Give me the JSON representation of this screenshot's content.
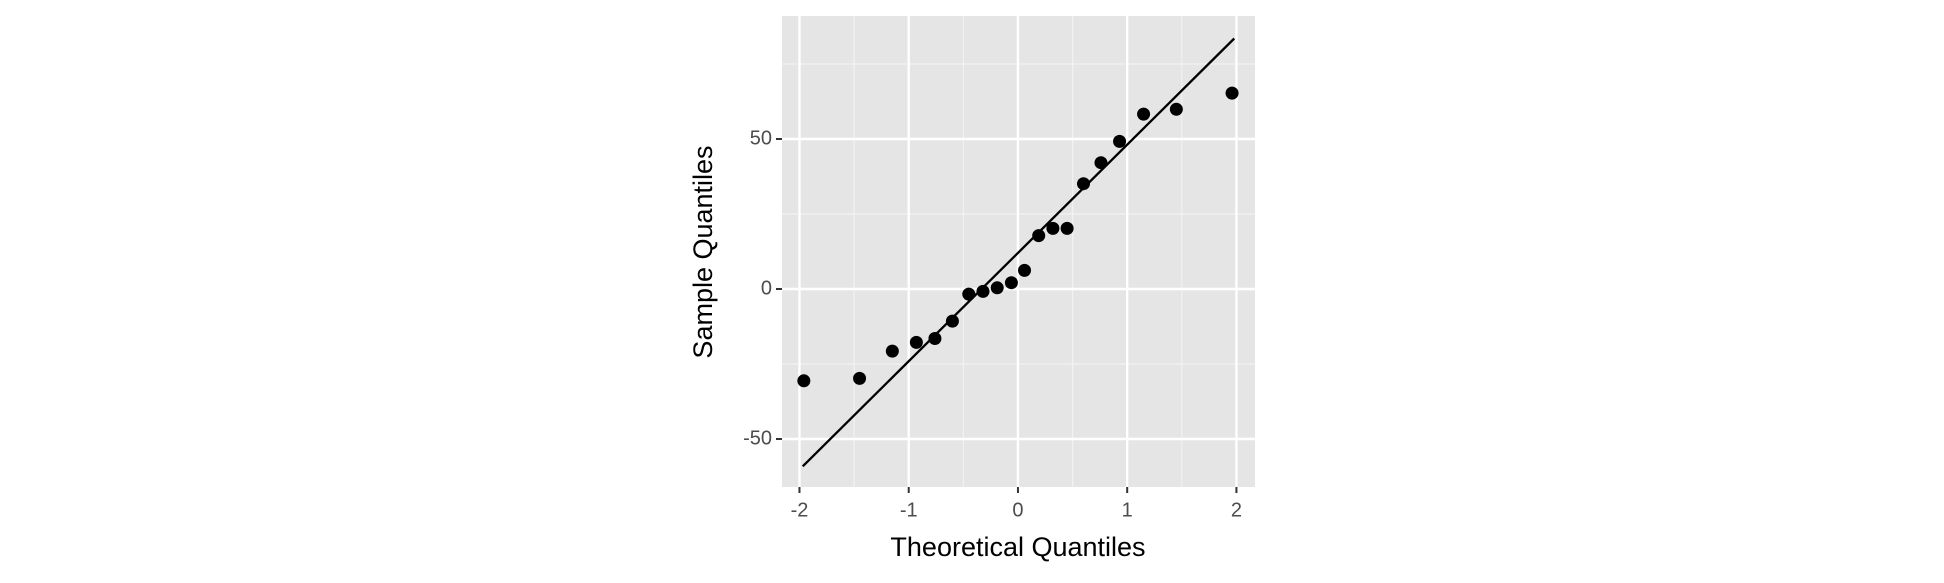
{
  "chart_data": {
    "type": "scatter",
    "x_label": "Theoretical Quantiles",
    "y_label": "Sample Quantiles",
    "series": [
      {
        "color": "#000000",
        "x": [
          -1.96,
          -1.45,
          -1.15,
          -0.93,
          -0.76,
          -0.6,
          -0.45,
          -0.32,
          -0.19,
          -0.06,
          0.06,
          0.19,
          0.32,
          0.45,
          0.6,
          0.76,
          0.93,
          1.15,
          1.45,
          1.96
        ],
        "values": [
          -30.6,
          -29.8,
          -20.7,
          -17.8,
          -16.5,
          -10.7,
          -1.7,
          -0.8,
          0.4,
          2.1,
          6.2,
          17.8,
          20.2,
          20.2,
          35.1,
          42.1,
          49.2,
          58.3,
          59.9,
          65.3
        ]
      }
    ],
    "reference_line": {
      "color": "#000000",
      "x": [
        -1.97,
        1.98
      ],
      "values": [
        -59.1,
        83.5
      ]
    },
    "xlim": [
      -2.16,
      2.17
    ],
    "ylim": [
      -66,
      91
    ],
    "xticks": [
      -2,
      -1,
      0,
      1,
      2
    ],
    "yticks": [
      -50,
      0,
      50
    ],
    "xminor": [
      -1.5,
      -0.5,
      0.5,
      1.5
    ],
    "yminor": [
      -25,
      25,
      75
    ],
    "grid": true,
    "panel_color": "#e5e5e5"
  }
}
